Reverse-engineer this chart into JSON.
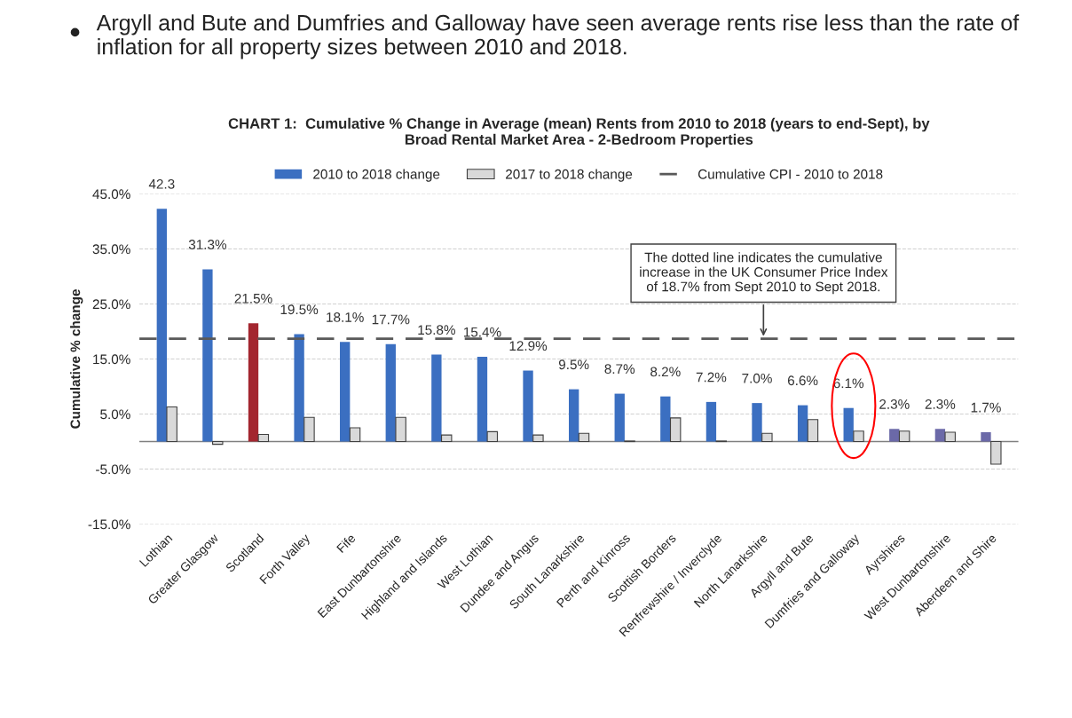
{
  "chart_data": {
    "type": "bar",
    "title": "CHART 1:  Cumulative % Change in Average (mean) Rents from 2010 to 2018 (years to end-Sept), by\nBroad Rental Market Area - 2-Bedroom Properties",
    "ylabel": "Cumulative % change",
    "categories": [
      "Lothian",
      "Greater Glasgow",
      "Scotland",
      "Forth Valley",
      "Fife",
      "East Dunbartonshire",
      "Highland and Islands",
      "West Lothian",
      "Dundee and Angus",
      "South Lanarkshire",
      "Perth and Kinross",
      "Scottish Borders",
      "Renfrewshire / Inverclyde",
      "North Lanarkshire",
      "Argyll and Bute",
      "Dumfries and Galloway",
      "Ayrshires",
      "West Dunbartonshire",
      "Aberdeen and Shire"
    ],
    "series": [
      {
        "name": "2010 to 2018 change",
        "color": "#3b6fc1",
        "colors": [
          "#3b6fc1",
          "#3b6fc1",
          "#a3262f",
          "#3b6fc1",
          "#3b6fc1",
          "#3b6fc1",
          "#3b6fc1",
          "#3b6fc1",
          "#3b6fc1",
          "#3b6fc1",
          "#3b6fc1",
          "#3b6fc1",
          "#3b6fc1",
          "#3b6fc1",
          "#3b6fc1",
          "#3b6fc1",
          "#6b69a8",
          "#6b69a8",
          "#6b69a8"
        ],
        "values": [
          42.3,
          31.3,
          21.5,
          19.5,
          18.1,
          17.7,
          15.8,
          15.4,
          12.9,
          9.5,
          8.7,
          8.2,
          7.2,
          7.0,
          6.6,
          6.1,
          2.3,
          2.3,
          1.7
        ],
        "value_labels": [
          "42.3",
          "31.3%",
          "21.5%",
          "19.5%",
          "18.1%",
          "17.7%",
          "15.8%",
          "15.4%",
          "12.9%",
          "9.5%",
          "8.7%",
          "8.2%",
          "7.2%",
          "7.0%",
          "6.6%",
          "6.1%",
          "2.3%",
          "2.3%",
          "1.7%"
        ]
      },
      {
        "name": "2017 to 2018 change",
        "color": "#d9d9d9",
        "values": [
          6.3,
          -0.5,
          1.3,
          4.4,
          2.5,
          4.4,
          1.2,
          1.8,
          1.2,
          1.5,
          0.1,
          4.3,
          0.1,
          1.5,
          4.0,
          1.9,
          1.9,
          1.7,
          -4.1
        ]
      }
    ],
    "ref_lines": [
      {
        "axis": "y",
        "value": 18.7,
        "label": "Cumulative CPI - 2010 to 2018",
        "color": "#595959",
        "line_style": "dashed"
      }
    ],
    "annotations": [
      "Argyll and Bute and Dumfries and Galloway have seen average rents rise less than the rate of inflation for all property sizes between 2010 and 2018.",
      "The dotted line indicates the cumulative\nincrease in the UK Consumer Price Index\nof 18.7% from Sept 2010 to Sept 2018."
    ],
    "ylim": [
      -15,
      45
    ],
    "yticks": [
      {
        "value": 45,
        "label": "45.0%"
      },
      {
        "value": 35,
        "label": "35.0%"
      },
      {
        "value": 25,
        "label": "25.0%"
      },
      {
        "value": 15,
        "label": "15.0%"
      },
      {
        "value": 5,
        "label": "5.0%"
      },
      {
        "value": -5,
        "label": "-5.0%"
      },
      {
        "value": -15,
        "label": "-15.0%"
      }
    ],
    "grid": "y",
    "legend": "top"
  }
}
